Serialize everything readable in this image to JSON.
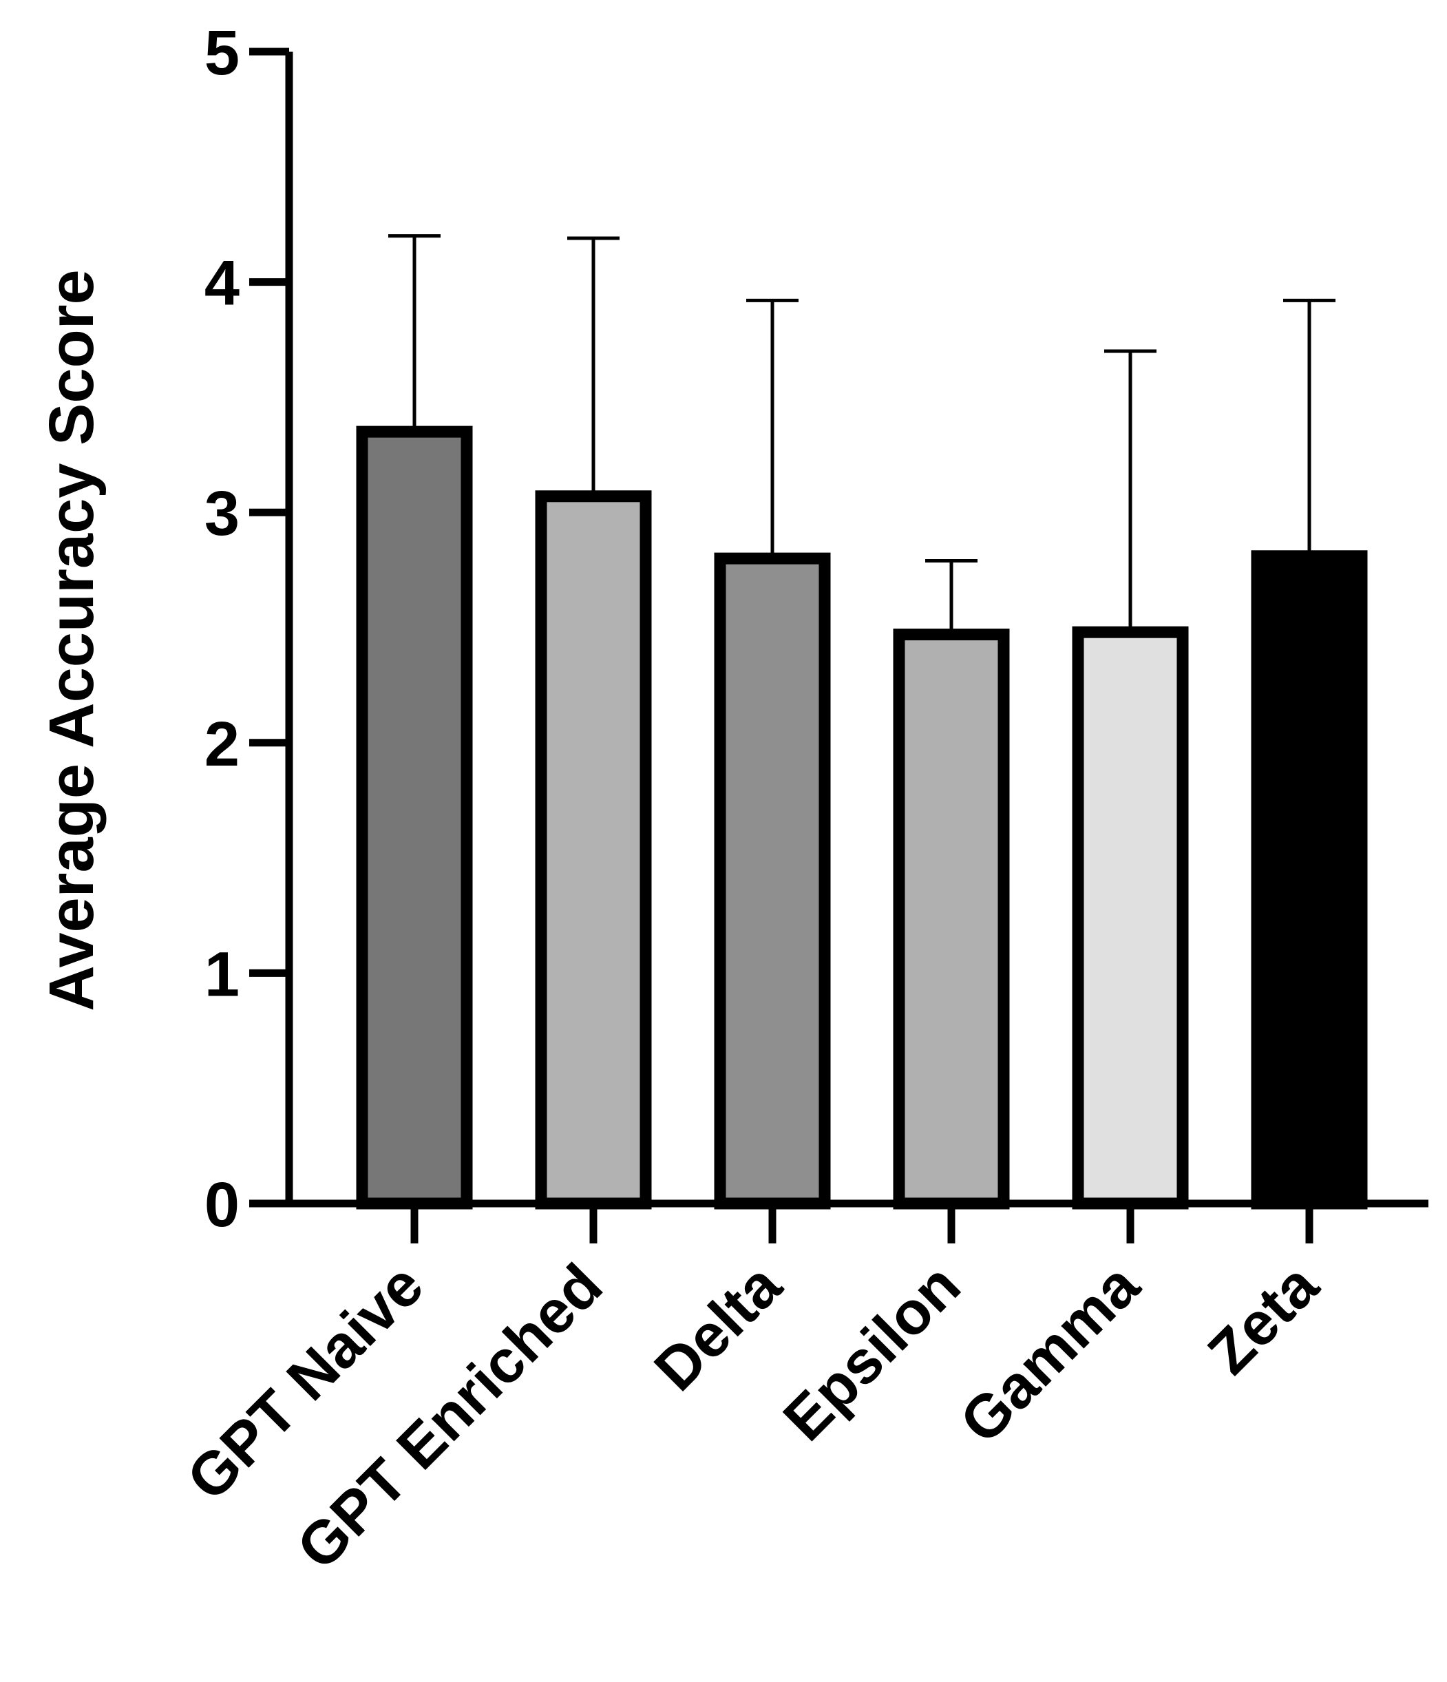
{
  "chart_data": {
    "type": "bar",
    "categories": [
      "GPT Naive",
      "GPT Enriched",
      "Delta",
      "Epsilon",
      "Gamma",
      "Zeta"
    ],
    "values": [
      3.35,
      3.07,
      2.8,
      2.47,
      2.48,
      2.81
    ],
    "error_upper": [
      4.2,
      4.19,
      3.92,
      2.79,
      3.7,
      3.92
    ],
    "bar_colors": [
      "#777777",
      "#b2b2b2",
      "#8f8f8f",
      "#b0b0b0",
      "#e0e0e0",
      "#000000"
    ],
    "edge_color": "#000000",
    "xlabel": "",
    "ylabel": "Average Accuracy Score",
    "ylim": [
      0,
      5
    ],
    "yticks": [
      0,
      1,
      2,
      3,
      4,
      5
    ],
    "grid": false,
    "legend": "none"
  }
}
